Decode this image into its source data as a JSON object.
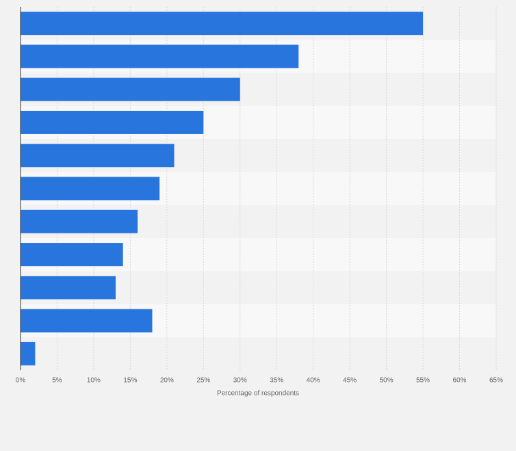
{
  "chart_data": {
    "type": "bar",
    "orientation": "horizontal",
    "x_label": "Percentage of respondents",
    "categories": [
      null,
      null,
      null,
      null,
      null,
      null,
      null,
      null,
      null,
      null,
      null
    ],
    "values": [
      55,
      38,
      30,
      25,
      21,
      19,
      16,
      14,
      13,
      18,
      2
    ],
    "color": "#2876dd",
    "xlim": [
      0,
      65
    ],
    "xticks": [
      {
        "value": 0,
        "label": "0%"
      },
      {
        "value": 5,
        "label": "5%"
      },
      {
        "value": 10,
        "label": "10%"
      },
      {
        "value": 15,
        "label": "15%"
      },
      {
        "value": 20,
        "label": "20%"
      },
      {
        "value": 25,
        "label": "25%"
      },
      {
        "value": 30,
        "label": "30%"
      },
      {
        "value": 35,
        "label": "35%"
      },
      {
        "value": 40,
        "label": "40%"
      },
      {
        "value": 45,
        "label": "45%"
      },
      {
        "value": 50,
        "label": "50%"
      },
      {
        "value": 55,
        "label": "55%"
      },
      {
        "value": 60,
        "label": "60%"
      },
      {
        "value": 65,
        "label": "65%"
      }
    ],
    "grid": true
  }
}
